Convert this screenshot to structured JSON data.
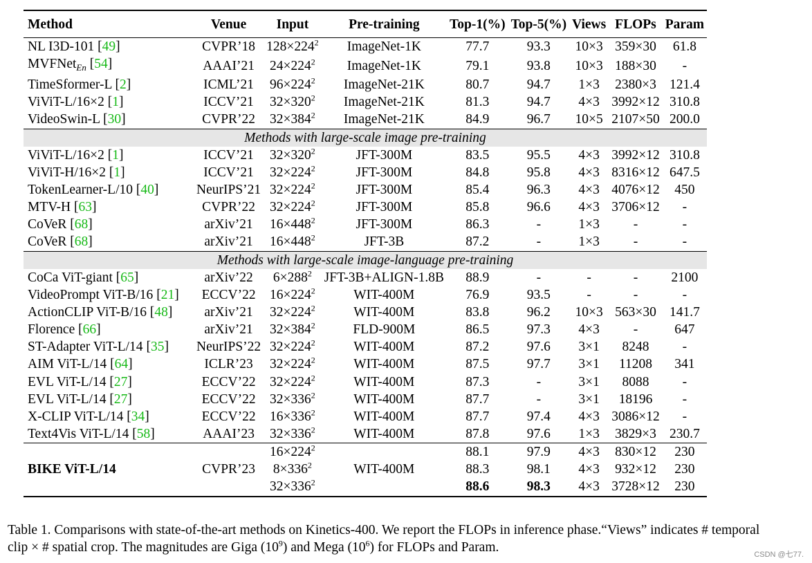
{
  "headers": [
    "Method",
    "Venue",
    "Input",
    "Pre-training",
    "Top-1(%)",
    "Top-5(%)",
    "Views",
    "FLOPs",
    "Param"
  ],
  "groups": [
    {
      "title": "",
      "rows": [
        {
          "method": "NL I3D-101",
          "sub": "",
          "cite": "49",
          "venue": "CVPR’18",
          "input": "128×224",
          "pretrain": "ImageNet-1K",
          "top1": "77.7",
          "top5": "93.3",
          "views": "10×3",
          "flops": "359×30",
          "param": "61.8"
        },
        {
          "method": "MVFNet",
          "sub": "En",
          "cite": "54",
          "venue": "AAAI’21",
          "input": "24×224",
          "pretrain": "ImageNet-1K",
          "top1": "79.1",
          "top5": "93.8",
          "views": "10×3",
          "flops": "188×30",
          "param": "-"
        },
        {
          "method": "TimeSformer-L",
          "sub": "",
          "cite": "2",
          "venue": "ICML’21",
          "input": "96×224",
          "pretrain": "ImageNet-21K",
          "top1": "80.7",
          "top5": "94.7",
          "views": "1×3",
          "flops": "2380×3",
          "param": "121.4"
        },
        {
          "method": "ViViT-L/16×2",
          "sub": "",
          "cite": "1",
          "venue": "ICCV’21",
          "input": "32×320",
          "pretrain": "ImageNet-21K",
          "top1": "81.3",
          "top5": "94.7",
          "views": "4×3",
          "flops": "3992×12",
          "param": "310.8"
        },
        {
          "method": "VideoSwin-L",
          "sub": "",
          "cite": "30",
          "venue": "CVPR’22",
          "input": "32×384",
          "pretrain": "ImageNet-21K",
          "top1": "84.9",
          "top5": "96.7",
          "views": "10×5",
          "flops": "2107×50",
          "param": "200.0"
        }
      ]
    },
    {
      "title": "Methods with large-scale image pre-training",
      "rows": [
        {
          "method": "ViViT-L/16×2",
          "sub": "",
          "cite": "1",
          "venue": "ICCV’21",
          "input": "32×320",
          "pretrain": "JFT-300M",
          "top1": "83.5",
          "top5": "95.5",
          "views": "4×3",
          "flops": "3992×12",
          "param": "310.8"
        },
        {
          "method": "ViViT-H/16×2",
          "sub": "",
          "cite": "1",
          "venue": "ICCV’21",
          "input": "32×224",
          "pretrain": "JFT-300M",
          "top1": "84.8",
          "top5": "95.8",
          "views": "4×3",
          "flops": "8316×12",
          "param": "647.5"
        },
        {
          "method": "TokenLearner-L/10",
          "sub": "",
          "cite": "40",
          "venue": "NeurIPS’21",
          "input": "32×224",
          "pretrain": "JFT-300M",
          "top1": "85.4",
          "top5": "96.3",
          "views": "4×3",
          "flops": "4076×12",
          "param": "450"
        },
        {
          "method": "MTV-H",
          "sub": "",
          "cite": "63",
          "venue": "CVPR’22",
          "input": "32×224",
          "pretrain": "JFT-300M",
          "top1": "85.8",
          "top5": "96.6",
          "views": "4×3",
          "flops": "3706×12",
          "param": "-"
        },
        {
          "method": "CoVeR",
          "sub": "",
          "cite": "68",
          "venue": "arXiv’21",
          "input": "16×448",
          "pretrain": "JFT-300M",
          "top1": "86.3",
          "top5": "-",
          "views": "1×3",
          "flops": "-",
          "param": "-"
        },
        {
          "method": "CoVeR",
          "sub": "",
          "cite": "68",
          "venue": "arXiv’21",
          "input": "16×448",
          "pretrain": "JFT-3B",
          "top1": "87.2",
          "top5": "-",
          "views": "1×3",
          "flops": "-",
          "param": "-"
        }
      ]
    },
    {
      "title": "Methods with large-scale image-language pre-training",
      "rows": [
        {
          "method": "CoCa ViT-giant",
          "sub": "",
          "cite": "65",
          "venue": "arXiv’22",
          "input": "6×288",
          "pretrain": "JFT-3B+ALIGN-1.8B",
          "top1": "88.9",
          "top5": "-",
          "views": "-",
          "flops": "-",
          "param": "2100"
        },
        {
          "method": "VideoPrompt ViT-B/16",
          "sub": "",
          "cite": "21",
          "venue": "ECCV’22",
          "input": "16×224",
          "pretrain": "WIT-400M",
          "top1": "76.9",
          "top5": "93.5",
          "views": "-",
          "flops": "-",
          "param": "-"
        },
        {
          "method": "ActionCLIP ViT-B/16",
          "sub": "",
          "cite": "48",
          "venue": "arXiv’21",
          "input": "32×224",
          "pretrain": "WIT-400M",
          "top1": "83.8",
          "top5": "96.2",
          "views": "10×3",
          "flops": "563×30",
          "param": "141.7"
        },
        {
          "method": "Florence",
          "sub": "",
          "cite": "66",
          "venue": "arXiv’21",
          "input": "32×384",
          "pretrain": "FLD-900M",
          "top1": "86.5",
          "top5": "97.3",
          "views": "4×3",
          "flops": "-",
          "param": "647"
        },
        {
          "method": "ST-Adapter ViT-L/14",
          "sub": "",
          "cite": "35",
          "venue": "NeurIPS’22",
          "input": "32×224",
          "pretrain": "WIT-400M",
          "top1": "87.2",
          "top5": "97.6",
          "views": "3×1",
          "flops": "8248",
          "param": "-"
        },
        {
          "method": "AIM ViT-L/14",
          "sub": "",
          "cite": "64",
          "venue": "ICLR’23",
          "input": "32×224",
          "pretrain": "WIT-400M",
          "top1": "87.5",
          "top5": "97.7",
          "views": "3×1",
          "flops": "11208",
          "param": "341"
        },
        {
          "method": "EVL ViT-L/14",
          "sub": "",
          "cite": "27",
          "venue": "ECCV’22",
          "input": "32×224",
          "pretrain": "WIT-400M",
          "top1": "87.3",
          "top5": "-",
          "views": "3×1",
          "flops": "8088",
          "param": "-"
        },
        {
          "method": "EVL ViT-L/14",
          "sub": "",
          "cite": "27",
          "venue": "ECCV’22",
          "input": "32×336",
          "pretrain": "WIT-400M",
          "top1": "87.7",
          "top5": "-",
          "views": "3×1",
          "flops": "18196",
          "param": "-"
        },
        {
          "method": "X-CLIP ViT-L/14",
          "sub": "",
          "cite": "34",
          "venue": "ECCV’22",
          "input": "16×336",
          "pretrain": "WIT-400M",
          "top1": "87.7",
          "top5": "97.4",
          "views": "4×3",
          "flops": "3086×12",
          "param": "-"
        },
        {
          "method": "Text4Vis ViT-L/14",
          "sub": "",
          "cite": "58",
          "venue": "AAAI’23",
          "input": "32×336",
          "pretrain": "WIT-400M",
          "top1": "87.8",
          "top5": "97.6",
          "views": "1×3",
          "flops": "3829×3",
          "param": "230.7"
        }
      ]
    }
  ],
  "bike": {
    "method": "BIKE ViT-L/14",
    "venue": "CVPR’23",
    "pretrain": "WIT-400M",
    "rows": [
      {
        "input": "16×224",
        "top1": "88.1",
        "top5": "97.9",
        "views": "4×3",
        "flops": "830×12",
        "param": "230",
        "bold": false
      },
      {
        "input": "8×336",
        "top1": "88.3",
        "top5": "98.1",
        "views": "4×3",
        "flops": "932×12",
        "param": "230",
        "bold": false
      },
      {
        "input": "32×336",
        "top1": "88.6",
        "top5": "98.3",
        "views": "4×3",
        "flops": "3728×12",
        "param": "230",
        "bold": true
      }
    ]
  },
  "input_exponent": "2",
  "caption": {
    "line1": "Table 1. Comparisons with state-of-the-art methods on Kinetics-400. We report the FLOPs in inference phase.“Views” indicates # temporal",
    "line2_a": "clip × # spatial crop. The magnitudes are Giga (10",
    "exp_giga": "9",
    "line2_b": ") and Mega (10",
    "exp_mega": "6",
    "line2_c": ") for FLOPs and Param."
  },
  "watermark": "CSDN @七77.",
  "colors": {
    "citation": "#17b917",
    "group_band": "#e6e6e6"
  }
}
